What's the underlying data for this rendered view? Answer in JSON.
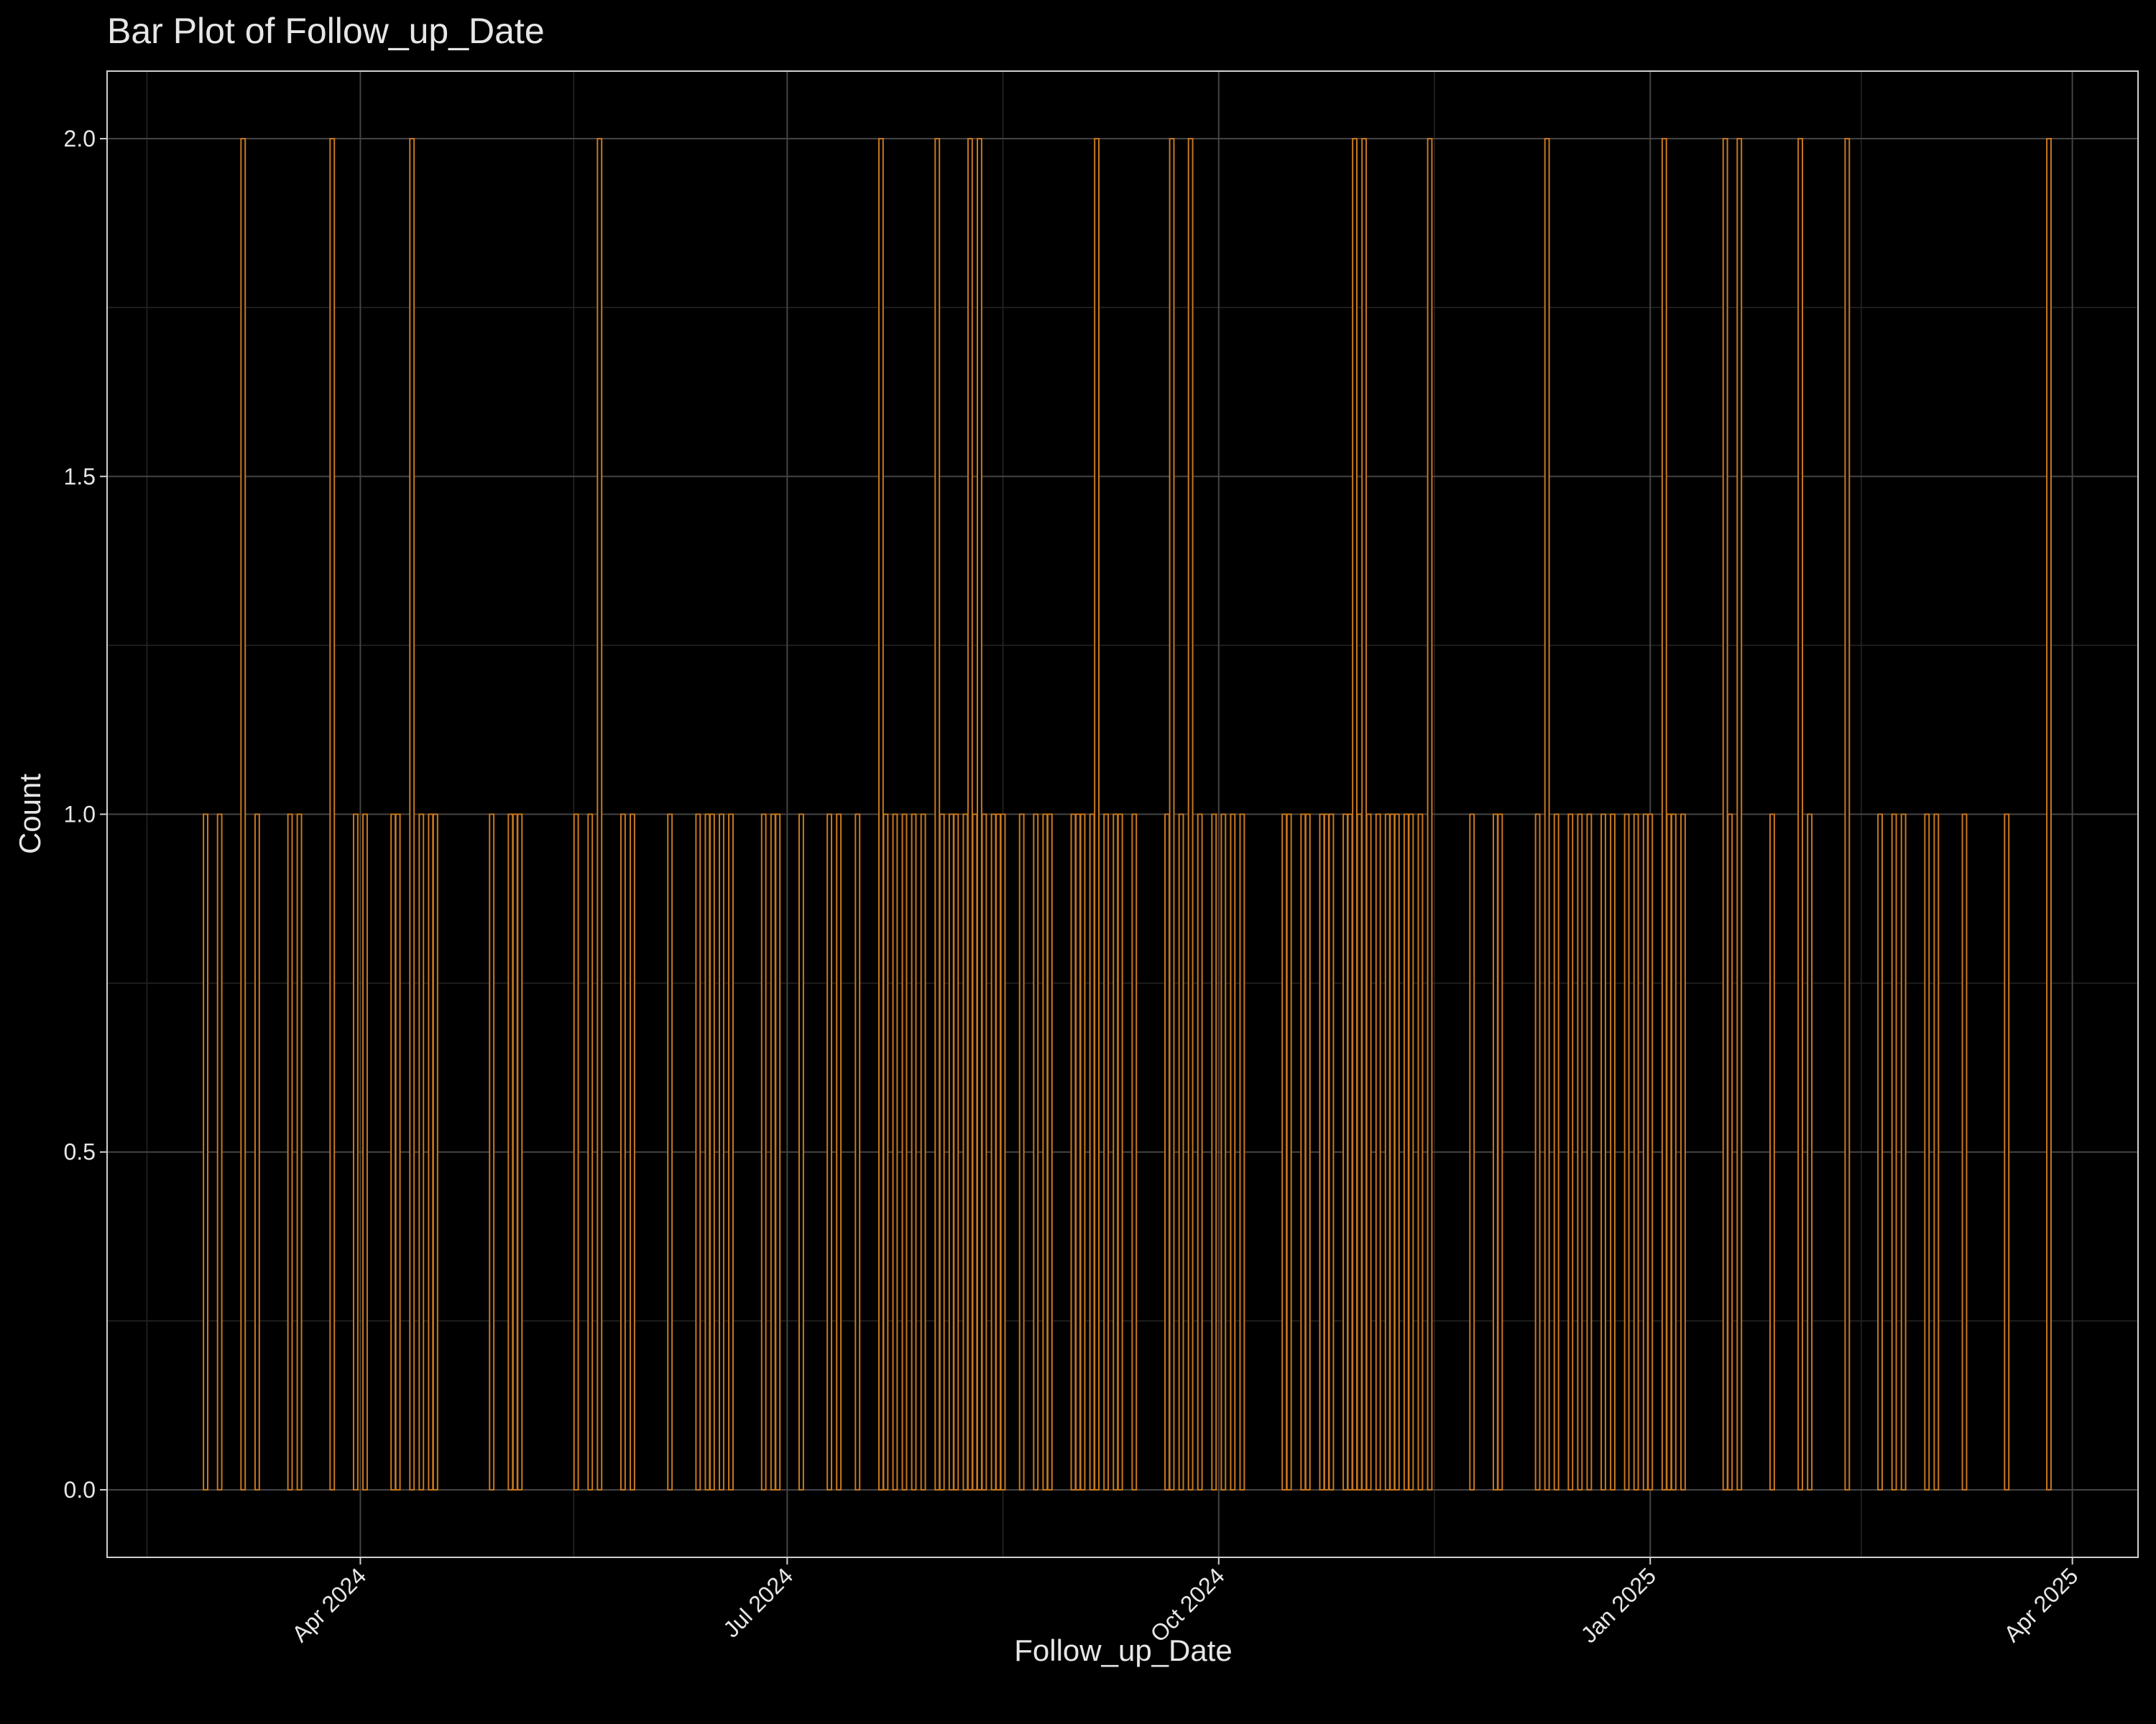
{
  "chart_data": {
    "type": "bar",
    "title": "Bar Plot of Follow_up_Date",
    "x_label": "Follow_up_Date",
    "y_label": "Count",
    "color": "#c8781e",
    "grid": true,
    "x": [
      "2024-02-28",
      "2024-03-02",
      "2024-03-07",
      "2024-03-10",
      "2024-03-17",
      "2024-03-19",
      "2024-03-26",
      "2024-03-31",
      "2024-04-02",
      "2024-04-08",
      "2024-04-09",
      "2024-04-12",
      "2024-04-14",
      "2024-04-16",
      "2024-04-17",
      "2024-04-29",
      "2024-05-03",
      "2024-05-04",
      "2024-05-05",
      "2024-05-17",
      "2024-05-20",
      "2024-05-22",
      "2024-05-27",
      "2024-05-29",
      "2024-06-06",
      "2024-06-12",
      "2024-06-14",
      "2024-06-15",
      "2024-06-17",
      "2024-06-19",
      "2024-06-26",
      "2024-06-28",
      "2024-06-29",
      "2024-07-04",
      "2024-07-10",
      "2024-07-12",
      "2024-07-16",
      "2024-07-21",
      "2024-07-22",
      "2024-07-24",
      "2024-07-26",
      "2024-07-28",
      "2024-07-30",
      "2024-08-02",
      "2024-08-03",
      "2024-08-05",
      "2024-08-06",
      "2024-08-08",
      "2024-08-09",
      "2024-08-10",
      "2024-08-11",
      "2024-08-12",
      "2024-08-14",
      "2024-08-15",
      "2024-08-16",
      "2024-08-20",
      "2024-08-23",
      "2024-08-25",
      "2024-08-26",
      "2024-08-31",
      "2024-09-01",
      "2024-09-02",
      "2024-09-04",
      "2024-09-05",
      "2024-09-07",
      "2024-09-09",
      "2024-09-10",
      "2024-09-13",
      "2024-09-20",
      "2024-09-21",
      "2024-09-23",
      "2024-09-25",
      "2024-09-27",
      "2024-09-30",
      "2024-10-02",
      "2024-10-04",
      "2024-10-06",
      "2024-10-15",
      "2024-10-16",
      "2024-10-19",
      "2024-10-20",
      "2024-10-23",
      "2024-10-24",
      "2024-10-25",
      "2024-10-28",
      "2024-10-29",
      "2024-10-30",
      "2024-10-31",
      "2024-11-01",
      "2024-11-02",
      "2024-11-04",
      "2024-11-06",
      "2024-11-07",
      "2024-11-08",
      "2024-11-10",
      "2024-11-11",
      "2024-11-13",
      "2024-11-15",
      "2024-11-24",
      "2024-11-29",
      "2024-11-30",
      "2024-12-08",
      "2024-12-10",
      "2024-12-12",
      "2024-12-15",
      "2024-12-17",
      "2024-12-19",
      "2024-12-22",
      "2024-12-24",
      "2024-12-27",
      "2024-12-29",
      "2024-12-31",
      "2025-01-01",
      "2025-01-04",
      "2025-01-05",
      "2025-01-06",
      "2025-01-08",
      "2025-01-17",
      "2025-01-18",
      "2025-01-20",
      "2025-01-27",
      "2025-02-02",
      "2025-02-04",
      "2025-02-12",
      "2025-02-19",
      "2025-02-22",
      "2025-02-24",
      "2025-03-01",
      "2025-03-03",
      "2025-03-09",
      "2025-03-18",
      "2025-03-27"
    ],
    "values": [
      1,
      1,
      2,
      1,
      1,
      1,
      2,
      1,
      1,
      1,
      1,
      2,
      1,
      1,
      1,
      1,
      1,
      1,
      1,
      1,
      1,
      2,
      1,
      1,
      1,
      1,
      1,
      1,
      1,
      1,
      1,
      1,
      1,
      1,
      1,
      1,
      1,
      2,
      1,
      1,
      1,
      1,
      1,
      2,
      1,
      1,
      1,
      1,
      2,
      1,
      2,
      1,
      1,
      1,
      1,
      1,
      1,
      1,
      1,
      1,
      1,
      1,
      1,
      2,
      1,
      1,
      1,
      1,
      1,
      2,
      1,
      2,
      1,
      1,
      1,
      1,
      1,
      1,
      1,
      1,
      1,
      1,
      1,
      1,
      1,
      1,
      2,
      1,
      2,
      1,
      1,
      1,
      1,
      1,
      1,
      1,
      1,
      2,
      1,
      1,
      1,
      1,
      2,
      1,
      1,
      1,
      1,
      1,
      1,
      1,
      1,
      1,
      1,
      2,
      1,
      1,
      1,
      2,
      1,
      2,
      1,
      2,
      1,
      2,
      1,
      1,
      1,
      1,
      1,
      1,
      1,
      2
    ],
    "xlim": [
      "2024-02-07",
      "2025-04-15"
    ],
    "xticks": [
      {
        "value": "2024-04-01",
        "label": "Apr 2024"
      },
      {
        "value": "2024-07-01",
        "label": "Jul 2024"
      },
      {
        "value": "2024-10-01",
        "label": "Oct 2024"
      },
      {
        "value": "2025-01-01",
        "label": "Jan 2025"
      },
      {
        "value": "2025-04-01",
        "label": "Apr 2025"
      }
    ],
    "ylim": [
      -0.1,
      2.1
    ],
    "yticks": [
      {
        "value": 0,
        "label": "0.0"
      },
      {
        "value": 0.5,
        "label": "0.5"
      },
      {
        "value": 1,
        "label": "1.0"
      },
      {
        "value": 1.5,
        "label": "1.5"
      },
      {
        "value": 2,
        "label": "2.0"
      }
    ]
  }
}
